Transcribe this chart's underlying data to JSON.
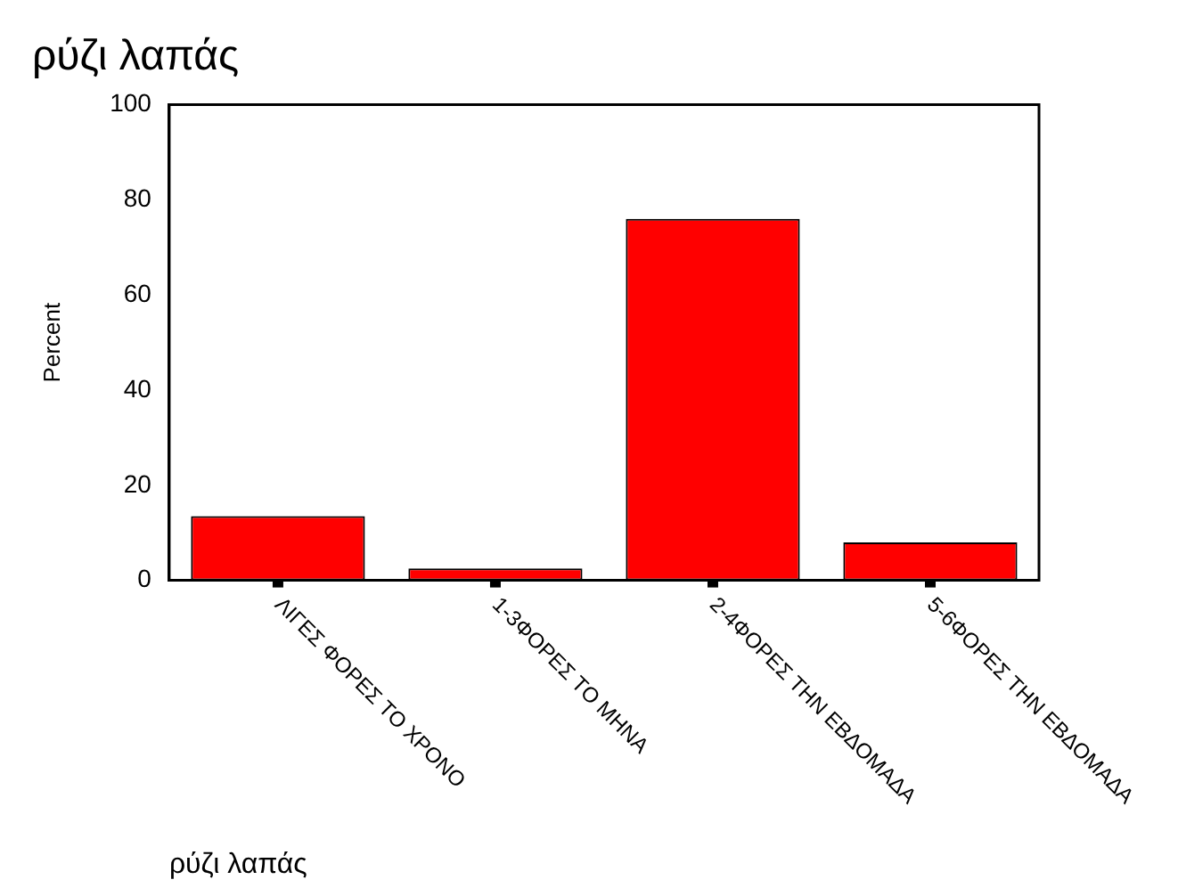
{
  "chart_data": {
    "type": "bar",
    "title": "ρύζι λαπάς",
    "xlabel": "ρύζι λαπάς",
    "ylabel": "Percent",
    "categories": [
      "ΛΙΓΕΣ ΦΟΡΕΣ ΤΟ ΧΡΟΝΟ",
      "1-3ΦΟΡΕΣ ΤΟ ΜΗΝΑ",
      "2-4ΦΟΡΕΣ ΤΗΝ ΕΒΔΟΜΑΔΑ",
      "5-6ΦΟΡΕΣ ΤΗΝ ΕΒΔΟΜΑΔΑ"
    ],
    "values": [
      13.5,
      2.5,
      76,
      8
    ],
    "color": "#ff0000",
    "ylim": [
      0,
      100
    ],
    "yticks": [
      0,
      20,
      40,
      60,
      80,
      100
    ],
    "grid": false,
    "legend": false
  }
}
